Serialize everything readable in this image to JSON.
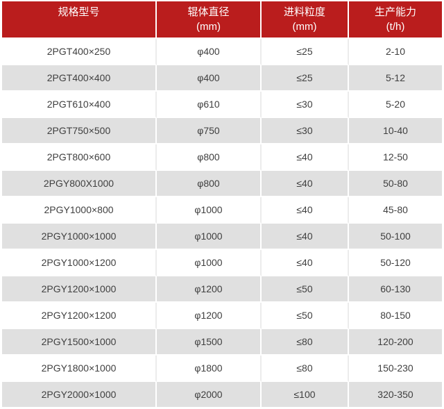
{
  "chart_data": {
    "type": "table",
    "title": "",
    "colors": {
      "header_bg": "#ba1d1d",
      "header_text": "#ffffff",
      "row_alt": "#e0e0e0",
      "row_divider": "#ececec",
      "body_text": "#3f3f3f"
    },
    "columns": [
      {
        "title": "规格型号",
        "unit": ""
      },
      {
        "title": "辊体直径",
        "unit": "(mm)"
      },
      {
        "title": "进料粒度",
        "unit": "(mm)"
      },
      {
        "title": "生产能力",
        "unit": "(t/h)"
      }
    ],
    "rows": [
      [
        "2PGT400×250",
        "φ400",
        "≤25",
        "2-10"
      ],
      [
        "2PGT400×400",
        "φ400",
        "≤25",
        "5-12"
      ],
      [
        "2PGT610×400",
        "φ610",
        "≤30",
        "5-20"
      ],
      [
        "2PGT750×500",
        "φ750",
        "≤30",
        "10-40"
      ],
      [
        "2PGT800×600",
        "φ800",
        "≤40",
        "12-50"
      ],
      [
        "2PGY800X1000",
        "φ800",
        "≤40",
        "50-80"
      ],
      [
        "2PGY1000×800",
        "φ1000",
        "≤40",
        "45-80"
      ],
      [
        "2PGY1000×1000",
        "φ1000",
        "≤40",
        "50-100"
      ],
      [
        "2PGY1000×1200",
        "φ1000",
        "≤40",
        "50-120"
      ],
      [
        "2PGY1200×1000",
        "φ1200",
        "≤50",
        "60-130"
      ],
      [
        "2PGY1200×1200",
        "φ1200",
        "≤50",
        "80-150"
      ],
      [
        "2PGY1500×1000",
        "φ1500",
        "≤80",
        "120-200"
      ],
      [
        "2PGY1800×1000",
        "φ1800",
        "≤80",
        "150-230"
      ],
      [
        "2PGY2000×1000",
        "φ2000",
        "≤100",
        "320-350"
      ]
    ],
    "cell_names": [
      "model",
      "roller-diameter",
      "feed-size",
      "capacity"
    ]
  }
}
